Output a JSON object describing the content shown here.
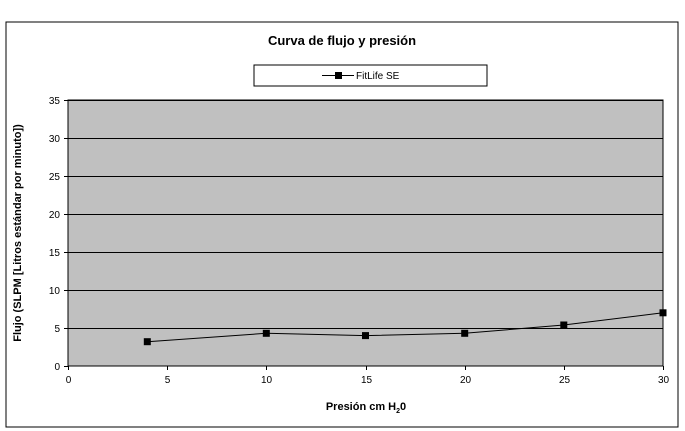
{
  "chart_data": {
    "type": "line",
    "title": "Curva de flujo y presión",
    "xlabel": {
      "prefix": "Presión cm H",
      "subscript": "2",
      "suffix": "0"
    },
    "ylabel": "Flujo (SLPM [Litros estándar por minuto])",
    "xlim": [
      0,
      30
    ],
    "ylim": [
      0,
      35
    ],
    "x_ticks": [
      0,
      5,
      10,
      15,
      20,
      25,
      30
    ],
    "y_ticks": [
      0,
      5,
      10,
      15,
      20,
      25,
      30,
      35
    ],
    "x_tick_labels": [
      "0",
      "5",
      "10",
      "15",
      "20",
      "25",
      "30"
    ],
    "y_tick_labels": [
      "0",
      "5",
      "10",
      "15",
      "20",
      "25",
      "30",
      "35"
    ],
    "grid": "horizontal",
    "legend_position": "top-center",
    "plot_background": "#c0c0c0",
    "line_color": "#000000",
    "marker": "square",
    "series": [
      {
        "name": "FitLife SE",
        "x": [
          4,
          10,
          15,
          20,
          25,
          30
        ],
        "y": [
          3.2,
          4.3,
          4.0,
          4.3,
          5.4,
          7.0
        ]
      }
    ]
  }
}
